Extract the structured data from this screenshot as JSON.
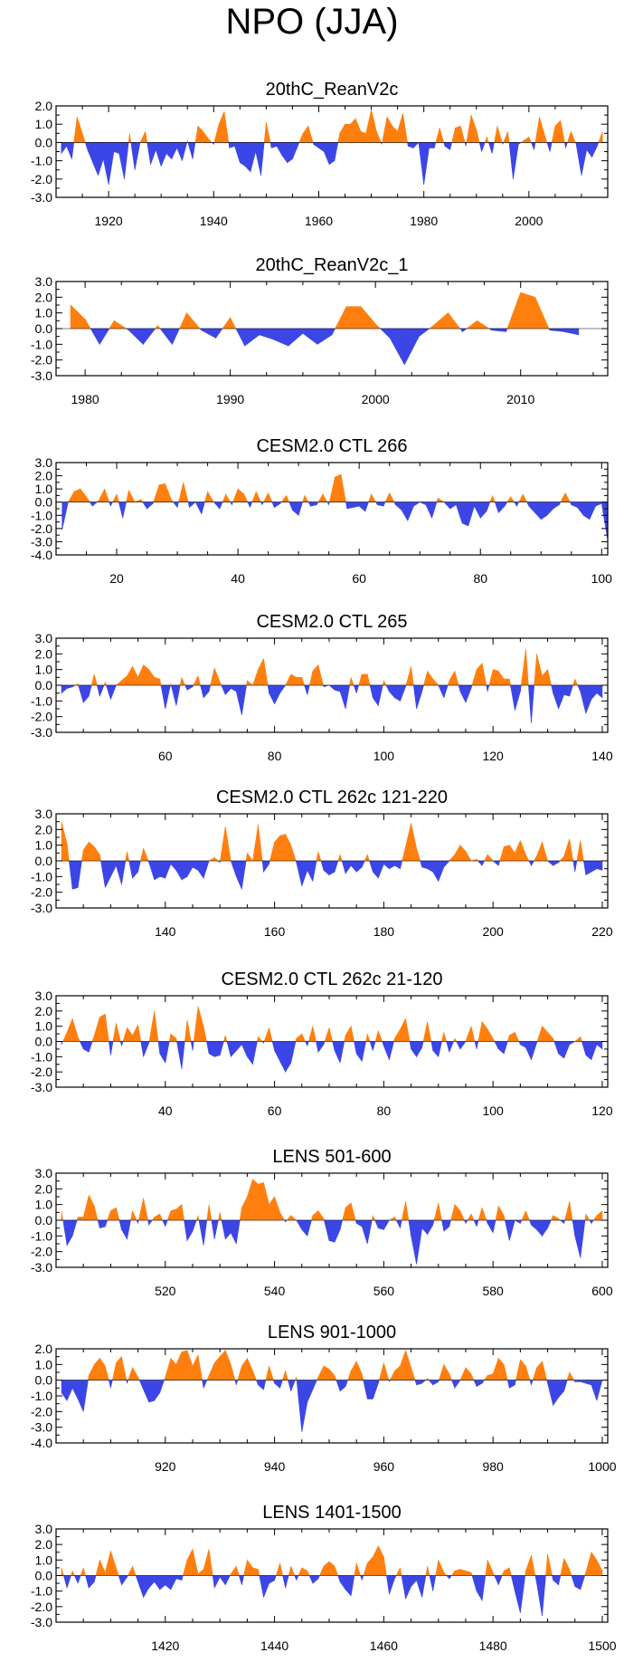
{
  "title": "NPO (JJA)",
  "colors": {
    "positive": "#FF7F0E",
    "negative": "#3C46E6",
    "axis": "#000000"
  },
  "chart_data": [
    {
      "type": "area",
      "title": "20thC_ReanV2c",
      "xlim": [
        1910,
        2015
      ],
      "ylim": [
        -3.0,
        2.0
      ],
      "yticks": [
        2.0,
        1.0,
        0.0,
        -1.0,
        -2.0,
        -3.0
      ],
      "xticks": [
        1920,
        1940,
        1960,
        1980,
        2000
      ],
      "x_start": 1911,
      "values": [
        -0.6,
        -0.2,
        -0.9,
        1.4,
        0.5,
        -0.4,
        -1.1,
        -1.8,
        -0.9,
        -2.3,
        -0.5,
        -0.6,
        -2.0,
        0.5,
        -1.5,
        0.0,
        0.6,
        -1.2,
        -0.4,
        -1.3,
        -0.6,
        -0.9,
        -0.3,
        -1.0,
        0.1,
        -0.9,
        0.9,
        0.6,
        0.2,
        -0.1,
        1.0,
        1.7,
        -0.3,
        -0.2,
        -1.1,
        -1.3,
        -1.6,
        -0.5,
        -1.8,
        1.1,
        -0.3,
        -0.2,
        -0.7,
        -1.1,
        -0.9,
        -0.2,
        0.5,
        0.9,
        -0.1,
        -0.3,
        -0.5,
        -1.2,
        -1.0,
        0.5,
        1.0,
        1.0,
        1.3,
        0.6,
        0.5,
        1.8,
        0.6,
        -0.1,
        1.4,
        0.9,
        0.6,
        1.6,
        -0.2,
        -0.3,
        0.0,
        -2.3,
        -0.3,
        -0.3,
        0.8,
        -0.2,
        -0.4,
        0.8,
        0.9,
        -0.2,
        1.5,
        0.7,
        -0.5,
        0.3,
        -0.6,
        0.9,
        -0.1,
        0.6,
        -2.0,
        -0.1,
        0.1,
        0.3,
        -0.4,
        1.4,
        0.4,
        -0.5,
        0.9,
        1.2,
        -0.3,
        0.6,
        -0.1,
        -1.8,
        -0.4,
        -0.8,
        -0.2,
        0.6
      ]
    },
    {
      "type": "area",
      "title": "20thC_ReanV2c_1",
      "xlim": [
        1978,
        2016
      ],
      "ylim": [
        -3.0,
        3.0
      ],
      "yticks": [
        3.0,
        2.0,
        1.0,
        0.0,
        -1.0,
        -2.0,
        -3.0
      ],
      "xticks": [
        1980,
        1990,
        2000,
        2010
      ],
      "x_start": 1979,
      "values": [
        1.5,
        0.6,
        -1.0,
        0.5,
        -0.1,
        -1.0,
        0.2,
        -1.0,
        1.0,
        -0.1,
        -0.6,
        0.7,
        -1.1,
        -0.4,
        -0.7,
        -1.1,
        -0.3,
        -1.0,
        -0.4,
        1.4,
        1.4,
        0.3,
        -0.6,
        -2.3,
        -0.5,
        0.2,
        1.0,
        -0.2,
        0.5,
        -0.1,
        -0.2,
        2.3,
        2.0,
        -0.1,
        -0.2,
        -0.4
      ]
    },
    {
      "type": "area",
      "title": "CESM2.0 CTL 266",
      "xlim": [
        10,
        101
      ],
      "ylim": [
        -4.0,
        3.0
      ],
      "yticks": [
        3.0,
        2.0,
        1.0,
        0.0,
        -1.0,
        -2.0,
        -3.0,
        -4.0
      ],
      "xticks": [
        20,
        40,
        60,
        80,
        100
      ],
      "x_start": 11,
      "values": [
        -2.1,
        0.0,
        0.8,
        1.0,
        0.4,
        -0.3,
        0.1,
        1.0,
        -0.3,
        0.6,
        -1.2,
        0.9,
        0.0,
        0.2,
        -0.5,
        -0.1,
        1.3,
        1.4,
        0.2,
        -0.4,
        1.5,
        -0.4,
        0.0,
        -0.9,
        0.8,
        0.0,
        -0.5,
        0.6,
        -0.2,
        1.0,
        0.6,
        -0.4,
        0.8,
        -0.2,
        0.7,
        -0.4,
        -0.1,
        0.5,
        -0.6,
        -1.0,
        0.5,
        -0.3,
        -0.2,
        0.6,
        -0.2,
        1.9,
        2.1,
        -0.5,
        -0.4,
        -0.3,
        -0.7,
        0.6,
        -0.2,
        -0.3,
        0.7,
        -0.2,
        -0.6,
        -1.4,
        -0.3,
        0.0,
        -0.2,
        -1.2,
        0.3,
        0.0,
        -0.5,
        -0.2,
        -1.6,
        -1.8,
        -0.3,
        -1.2,
        -0.7,
        0.5,
        -0.8,
        -0.3,
        0.4,
        -0.3,
        0.6,
        -0.3,
        -0.8,
        -1.3,
        -1.0,
        -0.5,
        -0.2,
        0.7,
        -0.2,
        -0.4,
        -1.0,
        -1.3,
        -0.3,
        -0.1,
        -2.9
      ]
    },
    {
      "type": "area",
      "title": "CESM2.0 CTL 265",
      "xlim": [
        40,
        141
      ],
      "ylim": [
        -3.0,
        3.0
      ],
      "yticks": [
        3.0,
        2.0,
        1.0,
        0.0,
        -1.0,
        -2.0,
        -3.0
      ],
      "xticks": [
        60,
        80,
        100,
        120,
        140
      ],
      "x_start": 41,
      "values": [
        -0.5,
        -0.2,
        -0.1,
        0.1,
        -1.1,
        -0.7,
        0.7,
        -0.7,
        0.2,
        -0.9,
        0.0,
        0.3,
        0.6,
        1.2,
        0.5,
        1.3,
        1.0,
        0.5,
        0.4,
        -1.5,
        0.1,
        -1.3,
        0.5,
        -0.3,
        -0.1,
        0.6,
        -0.8,
        -0.4,
        1.1,
        0.2,
        -0.6,
        -0.2,
        -0.4,
        -1.9,
        0.3,
        0.0,
        1.0,
        1.7,
        -0.5,
        -1.2,
        -0.5,
        0.0,
        0.7,
        0.5,
        0.5,
        -0.6,
        0.9,
        1.3,
        -0.1,
        0.0,
        -0.3,
        -0.4,
        -1.5,
        0.5,
        -0.5,
        0.7,
        0.7,
        -0.8,
        -1.3,
        0.3,
        -0.4,
        -0.8,
        -1.0,
        -0.1,
        1.2,
        -1.5,
        -0.4,
        0.9,
        0.4,
        0.0,
        -0.8,
        0.3,
        0.9,
        -0.4,
        -1.1,
        -0.2,
        1.0,
        1.4,
        -0.4,
        1.0,
        0.9,
        0.4,
        0.4,
        -1.6,
        -0.4,
        2.3,
        -2.4,
        2.0,
        0.6,
        1.0,
        -0.5,
        -1.5,
        -0.6,
        -0.7,
        0.4,
        -0.4,
        -1.8,
        -0.9,
        -0.5,
        -0.8
      ]
    },
    {
      "type": "area",
      "title": "CESM2.0 CTL 262c 121-220",
      "xlim": [
        120,
        221
      ],
      "ylim": [
        -3.0,
        3.0
      ],
      "yticks": [
        3.0,
        2.0,
        1.0,
        0.0,
        -1.0,
        -2.0,
        -3.0
      ],
      "xticks": [
        140,
        160,
        180,
        200,
        220
      ],
      "x_start": 121,
      "values": [
        2.5,
        1.1,
        -1.8,
        -1.7,
        0.7,
        1.2,
        0.9,
        0.4,
        -1.7,
        -1.0,
        -0.3,
        -1.5,
        0.6,
        -1.1,
        -0.7,
        0.8,
        -0.1,
        -1.2,
        -1.0,
        -1.1,
        -0.2,
        -0.6,
        -1.2,
        -1.0,
        -0.4,
        -0.6,
        -1.1,
        0.0,
        0.2,
        -0.1,
        2.2,
        0.0,
        -1.0,
        -1.8,
        0.5,
        0.0,
        2.3,
        -0.7,
        -0.2,
        1.2,
        1.6,
        1.7,
        1.0,
        -0.1,
        -1.6,
        -0.6,
        -1.3,
        0.6,
        -0.6,
        -0.9,
        -0.7,
        0.4,
        -0.8,
        -0.3,
        -0.7,
        -0.4,
        0.4,
        -0.7,
        -1.1,
        -0.2,
        -0.5,
        -0.3,
        -0.5,
        0.9,
        2.4,
        0.8,
        -0.4,
        -0.5,
        -0.7,
        -1.3,
        -0.4,
        0.0,
        0.4,
        1.0,
        0.6,
        0.0,
        0.1,
        -0.3,
        0.4,
        0.0,
        -0.3,
        0.9,
        1.0,
        0.5,
        1.3,
        0.4,
        -0.3,
        0.3,
        1.2,
        0.0,
        -0.3,
        -0.1,
        0.3,
        1.4,
        -0.7,
        1.3,
        -0.9,
        -0.7,
        -0.5,
        -0.6
      ]
    },
    {
      "type": "area",
      "title": "CESM2.0 CTL 262c 21-120",
      "xlim": [
        20,
        121
      ],
      "ylim": [
        -3.0,
        3.0
      ],
      "yticks": [
        3.0,
        2.0,
        1.0,
        0.0,
        -1.0,
        -2.0,
        -3.0
      ],
      "xticks": [
        40,
        60,
        80,
        100,
        120
      ],
      "x_start": 21,
      "values": [
        -0.2,
        0.6,
        1.5,
        0.3,
        -0.5,
        -0.7,
        0.4,
        1.6,
        1.8,
        -0.9,
        1.2,
        -0.3,
        0.9,
        0.4,
        1.1,
        -1.0,
        -0.1,
        2.0,
        -0.8,
        -1.4,
        0.5,
        0.2,
        -1.8,
        1.4,
        -0.6,
        2.3,
        1.0,
        -0.8,
        -1.0,
        -0.9,
        0.4,
        -1.0,
        -0.6,
        -0.2,
        -1.0,
        -1.5,
        0.3,
        -0.1,
        0.9,
        -0.6,
        -1.3,
        -2.0,
        -1.4,
        0.2,
        0.5,
        -0.3,
        1.0,
        -0.7,
        -0.2,
        0.9,
        -0.6,
        -1.4,
        0.4,
        1.0,
        -0.8,
        -1.3,
        0.5,
        -0.6,
        0.7,
        -0.3,
        -1.2,
        0.2,
        0.8,
        1.5,
        -0.5,
        -1.0,
        -0.4,
        1.3,
        -0.6,
        -1.0,
        0.6,
        -0.7,
        0.2,
        -0.5,
        0.0,
        1.0,
        -0.5,
        1.3,
        0.8,
        0.2,
        -0.5,
        -0.8,
        0.4,
        0.6,
        -0.2,
        -0.4,
        -1.2,
        -0.1,
        1.0,
        0.6,
        0.2,
        -0.8,
        -1.1,
        -0.2,
        0.0,
        0.3,
        -0.9,
        -1.2,
        -0.2,
        -0.5
      ]
    },
    {
      "type": "area",
      "title": "LENS 501-600",
      "xlim": [
        500,
        601
      ],
      "ylim": [
        -3.0,
        3.0
      ],
      "yticks": [
        3.0,
        2.0,
        1.0,
        0.0,
        -1.0,
        -2.0,
        -3.0
      ],
      "xticks": [
        520,
        540,
        560,
        580,
        600
      ],
      "x_start": 501,
      "values": [
        0.6,
        -1.6,
        -1.0,
        0.2,
        0.2,
        1.6,
        0.9,
        -0.5,
        -0.4,
        0.6,
        0.8,
        -0.6,
        -1.2,
        0.6,
        -0.2,
        1.4,
        -0.3,
        0.2,
        0.4,
        -0.4,
        0.6,
        0.7,
        1.0,
        -1.3,
        -0.7,
        0.3,
        -1.6,
        1.0,
        -1.2,
        0.5,
        -1.2,
        -0.8,
        -1.5,
        0.8,
        1.5,
        2.6,
        2.3,
        2.4,
        1.0,
        1.5,
        0.5,
        -0.1,
        0.3,
        0.0,
        -0.6,
        -1.0,
        0.3,
        0.6,
        0.1,
        -1.3,
        -1.4,
        -0.6,
        0.8,
        1.1,
        -0.2,
        -0.4,
        -1.5,
        0.3,
        -0.5,
        -0.6,
        0.0,
        0.2,
        -0.5,
        1.2,
        -1.0,
        -2.8,
        -0.5,
        -0.9,
        -0.3,
        1.1,
        -0.7,
        -0.4,
        1.0,
        0.6,
        -0.2,
        0.4,
        -0.4,
        0.8,
        -0.2,
        -0.8,
        0.9,
        0.3,
        -1.3,
        0.0,
        -0.2,
        0.6,
        -0.3,
        -0.6,
        -1.0,
        -0.5,
        0.3,
        0.1,
        -0.2,
        1.2,
        -1.0,
        -2.4,
        0.4,
        -0.2,
        0.3,
        0.6
      ]
    },
    {
      "type": "area",
      "title": "LENS 901-1000",
      "xlim": [
        900,
        1001
      ],
      "ylim": [
        -4.0,
        2.0
      ],
      "yticks": [
        2.0,
        1.0,
        0.0,
        -1.0,
        -2.0,
        -3.0,
        -4.0
      ],
      "xticks": [
        920,
        940,
        960,
        980,
        1000
      ],
      "x_start": 901,
      "values": [
        -0.8,
        -1.3,
        -0.5,
        -1.2,
        -2.0,
        0.3,
        1.0,
        1.4,
        0.9,
        -0.5,
        1.1,
        1.5,
        -0.2,
        0.8,
        0.2,
        -0.6,
        -1.4,
        -1.3,
        -0.8,
        0.2,
        1.4,
        1.0,
        1.8,
        1.9,
        0.9,
        1.6,
        -0.5,
        0.3,
        1.1,
        1.5,
        1.9,
        1.0,
        -0.3,
        0.9,
        1.4,
        0.6,
        -0.3,
        -0.6,
        0.9,
        -0.2,
        -0.5,
        0.6,
        -0.7,
        0.2,
        -3.3,
        -1.4,
        -0.6,
        0.2,
        0.9,
        0.7,
        0.3,
        -0.7,
        -0.4,
        0.6,
        1.2,
        0.4,
        -1.2,
        -1.2,
        -0.2,
        1.1,
        -0.1,
        0.6,
        0.9,
        1.9,
        0.8,
        -0.3,
        -0.2,
        0.1,
        -0.3,
        -0.1,
        1.0,
        0.4,
        -0.5,
        0.0,
        0.8,
        0.4,
        -0.4,
        -0.2,
        0.3,
        0.4,
        1.4,
        1.0,
        -0.5,
        -0.3,
        1.3,
        0.9,
        -0.3,
        0.8,
        1.2,
        -0.2,
        -1.6,
        -1.1,
        -0.7,
        0.5,
        -0.1,
        -0.1,
        -0.2,
        -0.3,
        -1.3,
        0.0
      ]
    },
    {
      "type": "area",
      "title": "LENS 1401-1500",
      "xlim": [
        1400,
        1501
      ],
      "ylim": [
        -3.0,
        3.0
      ],
      "yticks": [
        3.0,
        2.0,
        1.0,
        0.0,
        -1.0,
        -2.0,
        -3.0
      ],
      "xticks": [
        1420,
        1440,
        1460,
        1480,
        1500
      ],
      "x_start": 1401,
      "values": [
        0.5,
        -0.8,
        0.3,
        -0.5,
        0.5,
        -0.8,
        -0.4,
        1.0,
        0.2,
        1.6,
        0.5,
        -0.6,
        -0.1,
        0.6,
        -0.4,
        -1.4,
        -0.8,
        -0.4,
        -0.9,
        -0.6,
        -0.9,
        -0.2,
        -0.3,
        1.0,
        1.7,
        0.1,
        0.4,
        1.7,
        -0.8,
        -0.1,
        -0.6,
        0.1,
        0.6,
        -0.6,
        1.0,
        0.5,
        0.4,
        -1.4,
        -0.5,
        -0.3,
        0.8,
        -0.8,
        0.6,
        -0.3,
        0.5,
        0.3,
        -0.5,
        -0.2,
        0.6,
        0.9,
        0.6,
        -0.4,
        -0.9,
        -1.3,
        0.8,
        -0.3,
        0.8,
        1.2,
        1.9,
        1.2,
        -1.2,
        -0.2,
        0.5,
        -1.5,
        -0.7,
        -0.3,
        -1.4,
        0.6,
        -1.0,
        1.0,
        0.2,
        -0.2,
        0.3,
        0.4,
        0.3,
        0.2,
        -1.0,
        -1.6,
        1.0,
        0.2,
        -0.6,
        0.3,
        0.5,
        -1.0,
        -2.4,
        0.3,
        1.3,
        -0.5,
        -2.6,
        1.4,
        -0.3,
        -0.6,
        1.1,
        0.4,
        -0.7,
        -0.9,
        0.2,
        1.5,
        1.0,
        0.3
      ]
    }
  ]
}
